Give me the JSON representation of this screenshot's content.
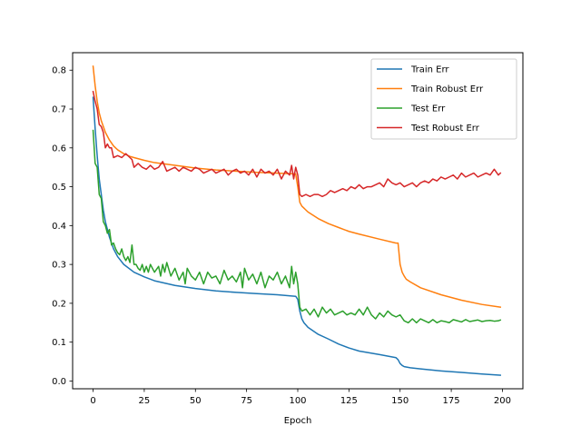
{
  "chart_data": {
    "type": "line",
    "title": "",
    "xlabel": "Epoch",
    "ylabel": "",
    "xlim": [
      -10,
      210
    ],
    "ylim": [
      -0.02,
      0.845
    ],
    "xticks": [
      0,
      25,
      50,
      75,
      100,
      125,
      150,
      175,
      200
    ],
    "xtick_labels": [
      "0",
      "25",
      "50",
      "75",
      "100",
      "125",
      "150",
      "175",
      "200"
    ],
    "yticks": [
      0.0,
      0.1,
      0.2,
      0.3,
      0.4,
      0.5,
      0.6,
      0.7,
      0.8
    ],
    "ytick_labels": [
      "0.0",
      "0.1",
      "0.2",
      "0.3",
      "0.4",
      "0.5",
      "0.6",
      "0.7",
      "0.8"
    ],
    "grid": false,
    "legend_position": "top-right",
    "series": [
      {
        "name": "Train Err",
        "color": "#1f77b4",
        "x": [
          0,
          1,
          2,
          3,
          4,
          5,
          6,
          7,
          8,
          10,
          12,
          15,
          20,
          25,
          30,
          40,
          50,
          60,
          70,
          80,
          90,
          99,
          100,
          101,
          102,
          103,
          105,
          110,
          115,
          120,
          125,
          130,
          140,
          148,
          149,
          150,
          151,
          152,
          155,
          160,
          170,
          180,
          190,
          199
        ],
        "y": [
          0.73,
          0.65,
          0.58,
          0.52,
          0.48,
          0.44,
          0.41,
          0.39,
          0.37,
          0.34,
          0.32,
          0.3,
          0.28,
          0.268,
          0.258,
          0.246,
          0.238,
          0.232,
          0.228,
          0.225,
          0.222,
          0.218,
          0.21,
          0.18,
          0.16,
          0.15,
          0.138,
          0.12,
          0.108,
          0.095,
          0.085,
          0.077,
          0.068,
          0.06,
          0.055,
          0.045,
          0.04,
          0.037,
          0.034,
          0.031,
          0.026,
          0.022,
          0.018,
          0.015
        ]
      },
      {
        "name": "Train Robust Err",
        "color": "#ff7f0e",
        "x": [
          0,
          1,
          2,
          3,
          4,
          5,
          6,
          7,
          8,
          10,
          12,
          15,
          18,
          20,
          25,
          30,
          40,
          50,
          60,
          70,
          80,
          90,
          99,
          100,
          101,
          102,
          103,
          104,
          105,
          110,
          115,
          120,
          125,
          130,
          140,
          148,
          149,
          150,
          151,
          152,
          153,
          155,
          160,
          170,
          180,
          190,
          199
        ],
        "y": [
          0.81,
          0.76,
          0.72,
          0.69,
          0.67,
          0.655,
          0.64,
          0.63,
          0.62,
          0.605,
          0.595,
          0.585,
          0.578,
          0.575,
          0.568,
          0.562,
          0.555,
          0.548,
          0.543,
          0.54,
          0.537,
          0.535,
          0.533,
          0.5,
          0.46,
          0.45,
          0.445,
          0.44,
          0.435,
          0.418,
          0.405,
          0.395,
          0.385,
          0.378,
          0.365,
          0.355,
          0.355,
          0.3,
          0.28,
          0.27,
          0.262,
          0.255,
          0.24,
          0.222,
          0.208,
          0.197,
          0.19
        ]
      },
      {
        "name": "Test Err",
        "color": "#2ca02c",
        "x": [
          0,
          1,
          2,
          3,
          4,
          5,
          6,
          7,
          8,
          9,
          10,
          11,
          12,
          13,
          14,
          15,
          16,
          17,
          18,
          19,
          20,
          21,
          22,
          23,
          24,
          25,
          26,
          27,
          28,
          30,
          32,
          33,
          34,
          35,
          36,
          38,
          40,
          42,
          44,
          45,
          46,
          48,
          50,
          52,
          54,
          56,
          58,
          60,
          62,
          64,
          66,
          68,
          70,
          72,
          73,
          74,
          76,
          78,
          80,
          82,
          84,
          86,
          88,
          90,
          92,
          94,
          96,
          97,
          98,
          99,
          100,
          101,
          102,
          104,
          106,
          108,
          110,
          112,
          114,
          116,
          118,
          120,
          122,
          124,
          126,
          128,
          130,
          132,
          134,
          136,
          138,
          140,
          142,
          144,
          146,
          148,
          150,
          152,
          154,
          156,
          158,
          160,
          162,
          164,
          166,
          168,
          170,
          172,
          174,
          176,
          178,
          180,
          182,
          184,
          186,
          188,
          190,
          192,
          194,
          196,
          198,
          199
        ],
        "y": [
          0.645,
          0.56,
          0.55,
          0.48,
          0.47,
          0.41,
          0.4,
          0.38,
          0.39,
          0.35,
          0.355,
          0.34,
          0.33,
          0.325,
          0.34,
          0.32,
          0.31,
          0.32,
          0.305,
          0.35,
          0.3,
          0.3,
          0.29,
          0.285,
          0.3,
          0.28,
          0.295,
          0.28,
          0.3,
          0.28,
          0.295,
          0.27,
          0.3,
          0.28,
          0.305,
          0.27,
          0.29,
          0.26,
          0.28,
          0.25,
          0.29,
          0.27,
          0.26,
          0.28,
          0.25,
          0.28,
          0.265,
          0.27,
          0.25,
          0.285,
          0.26,
          0.27,
          0.255,
          0.28,
          0.24,
          0.29,
          0.26,
          0.275,
          0.25,
          0.28,
          0.24,
          0.27,
          0.26,
          0.28,
          0.25,
          0.27,
          0.24,
          0.295,
          0.25,
          0.28,
          0.25,
          0.19,
          0.18,
          0.185,
          0.17,
          0.185,
          0.165,
          0.19,
          0.175,
          0.185,
          0.17,
          0.175,
          0.18,
          0.17,
          0.175,
          0.17,
          0.185,
          0.17,
          0.19,
          0.17,
          0.16,
          0.175,
          0.165,
          0.18,
          0.17,
          0.165,
          0.17,
          0.155,
          0.15,
          0.16,
          0.15,
          0.16,
          0.155,
          0.15,
          0.158,
          0.15,
          0.155,
          0.153,
          0.15,
          0.158,
          0.155,
          0.152,
          0.158,
          0.153,
          0.155,
          0.157,
          0.153,
          0.155,
          0.156,
          0.154,
          0.155,
          0.157
        ]
      },
      {
        "name": "Test Robust Err",
        "color": "#d62728",
        "x": [
          0,
          1,
          2,
          3,
          4,
          5,
          6,
          7,
          8,
          9,
          10,
          12,
          14,
          16,
          18,
          19,
          20,
          22,
          24,
          26,
          28,
          30,
          32,
          34,
          36,
          38,
          40,
          42,
          44,
          46,
          48,
          50,
          52,
          54,
          56,
          58,
          60,
          62,
          64,
          66,
          68,
          70,
          72,
          74,
          76,
          78,
          80,
          82,
          84,
          86,
          88,
          90,
          92,
          94,
          96,
          97,
          98,
          99,
          100,
          101,
          102,
          104,
          106,
          108,
          110,
          112,
          114,
          116,
          118,
          120,
          122,
          124,
          126,
          128,
          130,
          132,
          134,
          136,
          138,
          140,
          142,
          144,
          146,
          148,
          150,
          152,
          154,
          156,
          158,
          160,
          162,
          164,
          166,
          168,
          170,
          172,
          174,
          176,
          178,
          180,
          182,
          184,
          186,
          188,
          190,
          192,
          194,
          196,
          198,
          199
        ],
        "y": [
          0.745,
          0.72,
          0.7,
          0.66,
          0.655,
          0.64,
          0.6,
          0.61,
          0.6,
          0.6,
          0.575,
          0.58,
          0.575,
          0.585,
          0.575,
          0.57,
          0.55,
          0.56,
          0.55,
          0.545,
          0.555,
          0.545,
          0.55,
          0.565,
          0.54,
          0.545,
          0.55,
          0.54,
          0.55,
          0.545,
          0.54,
          0.55,
          0.545,
          0.535,
          0.54,
          0.545,
          0.535,
          0.54,
          0.545,
          0.53,
          0.54,
          0.545,
          0.535,
          0.54,
          0.53,
          0.545,
          0.525,
          0.545,
          0.535,
          0.54,
          0.53,
          0.545,
          0.52,
          0.54,
          0.53,
          0.555,
          0.52,
          0.55,
          0.53,
          0.48,
          0.475,
          0.48,
          0.475,
          0.48,
          0.48,
          0.475,
          0.48,
          0.49,
          0.485,
          0.49,
          0.495,
          0.49,
          0.5,
          0.495,
          0.505,
          0.495,
          0.5,
          0.5,
          0.505,
          0.51,
          0.5,
          0.52,
          0.51,
          0.505,
          0.51,
          0.5,
          0.505,
          0.51,
          0.5,
          0.51,
          0.515,
          0.51,
          0.52,
          0.515,
          0.525,
          0.52,
          0.525,
          0.53,
          0.52,
          0.535,
          0.525,
          0.53,
          0.535,
          0.525,
          0.53,
          0.535,
          0.53,
          0.545,
          0.53,
          0.535
        ]
      }
    ]
  }
}
